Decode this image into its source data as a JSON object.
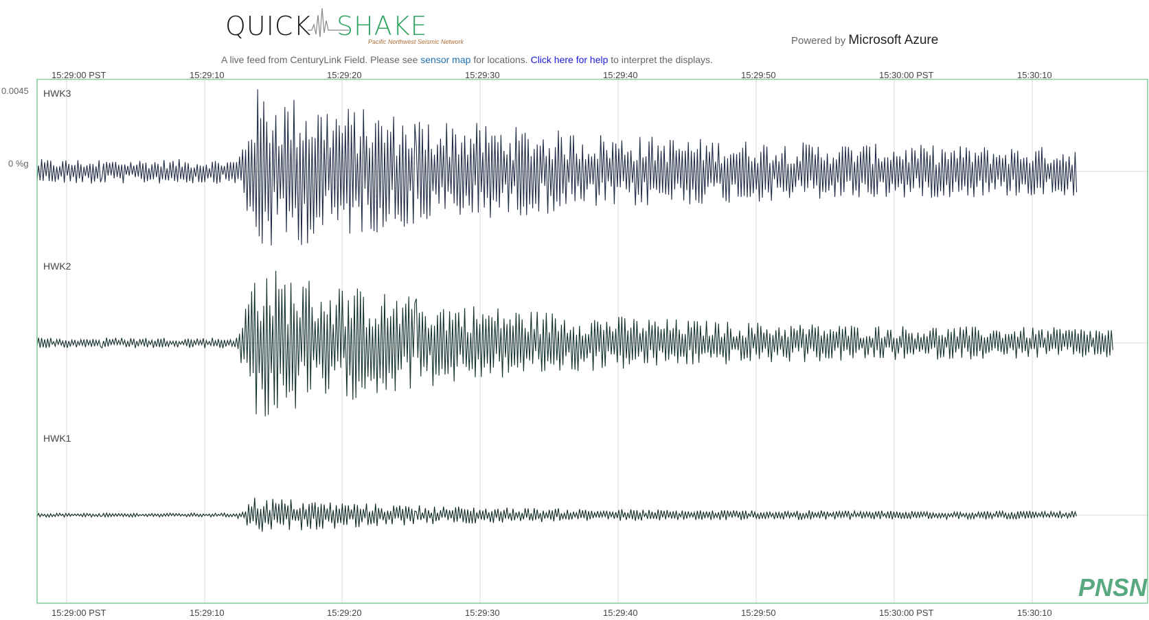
{
  "header": {
    "logo_left": "QUICK",
    "logo_right": "SHAKE",
    "logo_subtitle": "Pacific Northwest Seismic Network",
    "powered_prefix": "Powered by",
    "powered_brand": "Microsoft Azure"
  },
  "tagline": {
    "prefix": "A live feed from CenturyLink Field. Please see",
    "link1": "sensor map",
    "middle": "for locations.",
    "link2": "Click here for help",
    "suffix": "to interpret the displays."
  },
  "axis": {
    "top_ticks": [
      "15:29:00 PST",
      "15:29:10",
      "15:29:20",
      "15:29:30",
      "15:29:40",
      "15:29:50",
      "15:30:00 PST",
      "15:30:10"
    ],
    "bottom_ticks": [
      "15:29:00 PST",
      "15:29:10",
      "15:29:20",
      "15:29:30",
      "15:29:40",
      "15:29:50",
      "15:30:00 PST",
      "15:30:10"
    ],
    "y_max_label": "0.0045",
    "y_zero_label": "0 %g"
  },
  "traces": [
    {
      "name": "HWK3",
      "color": "#1f2a44"
    },
    {
      "name": "HWK2",
      "color": "#12302c"
    },
    {
      "name": "HWK1",
      "color": "#0f2a26"
    }
  ],
  "watermark": "PNSN",
  "colors": {
    "frame": "#7fc89a",
    "grid": "#d8d8d8",
    "brand_green": "#2fa35f"
  }
}
